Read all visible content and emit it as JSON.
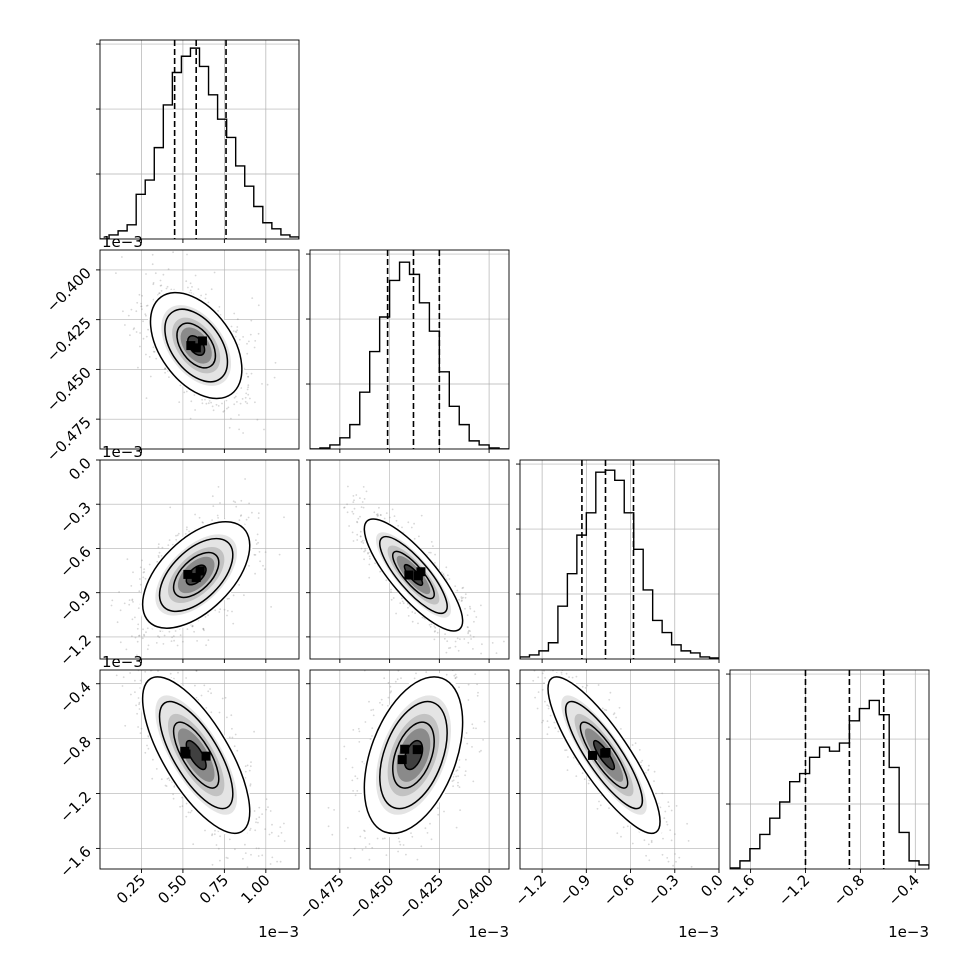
{
  "chart_data": {
    "type": "corner",
    "title": "",
    "n_params": 4,
    "parameters": [
      {
        "label": "",
        "range": [
          0.0,
          1.2
        ],
        "ticks": [
          0.25,
          0.5,
          0.75,
          1.0
        ],
        "tick_labels": [
          "0.25",
          "0.50",
          "0.75",
          "1.00"
        ],
        "offset_text": "1e−3",
        "quantiles": [
          0.45,
          0.58,
          0.76
        ],
        "hist_values": [
          0,
          0.02,
          0.04,
          0.07,
          0.22,
          0.29,
          0.45,
          0.66,
          0.82,
          0.9,
          0.94,
          0.85,
          0.71,
          0.59,
          0.5,
          0.36,
          0.26,
          0.16,
          0.08,
          0.05,
          0.02,
          0.01
        ]
      },
      {
        "label": "",
        "range": [
          -0.49,
          -0.39
        ],
        "ticks": [
          -0.475,
          -0.45,
          -0.425,
          -0.4
        ],
        "tick_labels": [
          "−0.475",
          "−0.450",
          "−0.425",
          "−0.400"
        ],
        "offset_text": "1e−3",
        "quantiles": [
          -0.451,
          -0.438,
          -0.425
        ],
        "hist_values": [
          0,
          0.005,
          0.02,
          0.055,
          0.12,
          0.28,
          0.48,
          0.65,
          0.83,
          0.92,
          0.86,
          0.72,
          0.58,
          0.38,
          0.21,
          0.12,
          0.04,
          0.02,
          0.005,
          0
        ]
      },
      {
        "label": "",
        "range": [
          -1.35,
          0.0
        ],
        "ticks": [
          -1.2,
          -0.9,
          -0.6,
          -0.3,
          0.0
        ],
        "tick_labels": [
          "−1.2",
          "−0.9",
          "−0.6",
          "−0.3",
          "0.0"
        ],
        "offset_text": "1e−3",
        "quantiles": [
          -0.93,
          -0.77,
          -0.58
        ],
        "hist_values": [
          0.01,
          0.02,
          0.04,
          0.08,
          0.26,
          0.42,
          0.61,
          0.72,
          0.92,
          0.93,
          0.88,
          0.72,
          0.54,
          0.34,
          0.19,
          0.13,
          0.07,
          0.04,
          0.03,
          0.01,
          0.005
        ]
      },
      {
        "label": "",
        "range": [
          -1.75,
          -0.3
        ],
        "ticks": [
          -1.6,
          -1.2,
          -0.8,
          -0.4
        ],
        "tick_labels": [
          "−1.6",
          "−1.2",
          "−0.8",
          "−0.4"
        ],
        "offset_text": "1e−3",
        "quantiles": [
          -1.2,
          -0.88,
          -0.63
        ],
        "hist_values": [
          0.005,
          0.04,
          0.1,
          0.17,
          0.25,
          0.33,
          0.43,
          0.47,
          0.55,
          0.6,
          0.58,
          0.62,
          0.73,
          0.79,
          0.83,
          0.76,
          0.5,
          0.18,
          0.04,
          0.02
        ]
      }
    ],
    "pairs": [
      {
        "x": 0,
        "y": 1,
        "mean": [
          0.58,
          -0.438
        ],
        "std": [
          0.145,
          0.014
        ],
        "corr": -0.45
      },
      {
        "x": 0,
        "y": 2,
        "mean": [
          0.58,
          -0.78
        ],
        "std": [
          0.17,
          0.19
        ],
        "corr": 0.55
      },
      {
        "x": 1,
        "y": 2,
        "mean": [
          -0.438,
          -0.78
        ],
        "std": [
          0.013,
          0.2
        ],
        "corr": -0.82
      },
      {
        "x": 0,
        "y": 3,
        "mean": [
          0.58,
          -0.92
        ],
        "std": [
          0.17,
          0.3
        ],
        "corr": -0.72
      },
      {
        "x": 1,
        "y": 3,
        "mean": [
          -0.438,
          -0.92
        ],
        "std": [
          0.013,
          0.3
        ],
        "corr": 0.42
      },
      {
        "x": 2,
        "y": 3,
        "mean": [
          -0.78,
          -0.92
        ],
        "std": [
          0.2,
          0.3
        ],
        "corr": -0.85
      }
    ],
    "grid": true,
    "colors": {
      "line": "#000000",
      "grid": "#b0b0b0",
      "scatter": "#8c8c8c",
      "frame": "#000000"
    }
  }
}
